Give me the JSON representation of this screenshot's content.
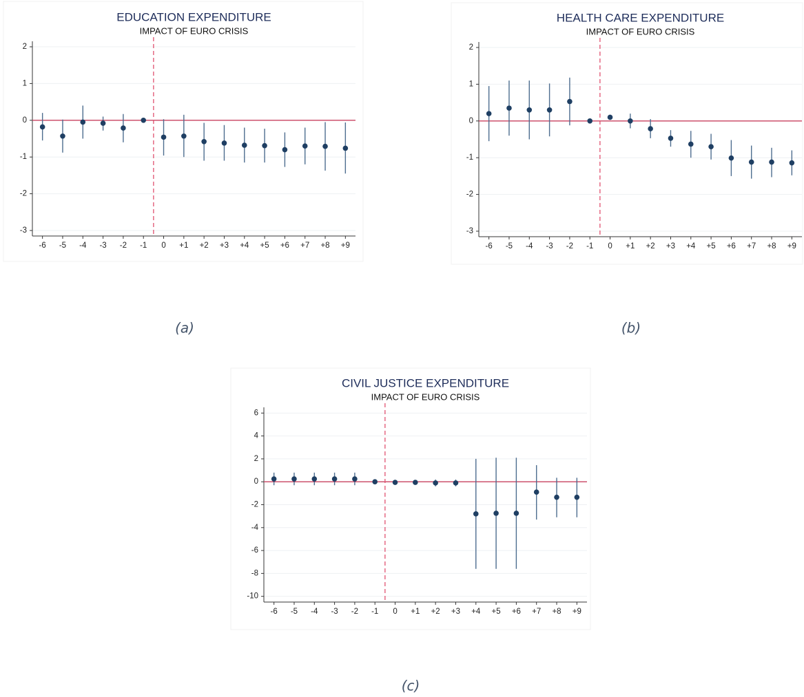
{
  "chart_data": [
    {
      "type": "errorbar",
      "title": "EDUCATION EXPENDITURE",
      "subtitle": "IMPACT OF EURO CRISIS",
      "caption": "(a)",
      "x": [
        -6,
        -5,
        -4,
        -3,
        -2,
        -1,
        0,
        1,
        2,
        3,
        4,
        5,
        6,
        7,
        8,
        9
      ],
      "values": [
        -0.18,
        -0.43,
        -0.05,
        -0.08,
        -0.21,
        0,
        -0.46,
        -0.43,
        -0.58,
        -0.62,
        -0.68,
        -0.69,
        -0.8,
        -0.7,
        -0.71,
        -0.76
      ],
      "lower": [
        -0.55,
        -0.88,
        -0.5,
        -0.28,
        -0.6,
        0,
        -0.96,
        -1.0,
        -1.1,
        -1.1,
        -1.15,
        -1.15,
        -1.27,
        -1.2,
        -1.37,
        -1.45
      ],
      "upper": [
        0.2,
        0.02,
        0.4,
        0.1,
        0.17,
        0,
        0.03,
        0.15,
        -0.07,
        -0.13,
        -0.2,
        -0.23,
        -0.33,
        -0.2,
        -0.05,
        -0.06
      ],
      "xlim": [
        -6.5,
        9.5
      ],
      "xticks": [
        -6,
        -5,
        -4,
        -3,
        -2,
        -1,
        0,
        {
          "value": 1,
          "label": "+1"
        },
        {
          "value": 2,
          "label": "+2"
        },
        {
          "value": 3,
          "label": "+3"
        },
        {
          "value": 4,
          "label": "+4"
        },
        {
          "value": 5,
          "label": "+5"
        },
        {
          "value": 6,
          "label": "+6"
        },
        {
          "value": 7,
          "label": "+7"
        },
        {
          "value": 8,
          "label": "+8"
        },
        {
          "value": 9,
          "label": "+9"
        }
      ],
      "ylim": [
        -3.15,
        2.15
      ],
      "yticks": [
        -3,
        -2,
        -1,
        0,
        1,
        2
      ],
      "hline": 0,
      "vline": -0.5,
      "grid": true,
      "color": "#1f3f63",
      "error_color": "#4d6d8f",
      "hline_color": "#c8405f",
      "vline_color": "#e0506f"
    },
    {
      "type": "errorbar",
      "title": "HEALTH CARE EXPENDITURE",
      "subtitle": "IMPACT OF EURO CRISIS",
      "caption": "(b)",
      "x": [
        -6,
        -5,
        -4,
        -3,
        -2,
        -1,
        0,
        1,
        2,
        3,
        4,
        5,
        6,
        7,
        8,
        9
      ],
      "values": [
        0.2,
        0.35,
        0.3,
        0.3,
        0.53,
        0,
        0.1,
        0,
        -0.21,
        -0.47,
        -0.63,
        -0.7,
        -1.01,
        -1.12,
        -1.12,
        -1.14
      ],
      "lower": [
        -0.55,
        -0.4,
        -0.5,
        -0.42,
        -0.12,
        0,
        0.03,
        -0.2,
        -0.47,
        -0.7,
        -1.0,
        -1.05,
        -1.5,
        -1.57,
        -1.53,
        -1.48
      ],
      "upper": [
        0.95,
        1.1,
        1.1,
        1.02,
        1.18,
        0,
        0.16,
        0.2,
        0.05,
        -0.25,
        -0.27,
        -0.35,
        -0.52,
        -0.67,
        -0.73,
        -0.8
      ],
      "xlim": [
        -6.5,
        9.5
      ],
      "xticks": [
        -6,
        -5,
        -4,
        -3,
        -2,
        -1,
        0,
        {
          "value": 1,
          "label": "+1"
        },
        {
          "value": 2,
          "label": "+2"
        },
        {
          "value": 3,
          "label": "+3"
        },
        {
          "value": 4,
          "label": "+4"
        },
        {
          "value": 5,
          "label": "+5"
        },
        {
          "value": 6,
          "label": "+6"
        },
        {
          "value": 7,
          "label": "+7"
        },
        {
          "value": 8,
          "label": "+8"
        },
        {
          "value": 9,
          "label": "+9"
        }
      ],
      "ylim": [
        -3.15,
        2.15
      ],
      "yticks": [
        -3,
        -2,
        -1,
        0,
        1,
        2
      ],
      "hline": 0,
      "vline": -0.5,
      "grid": true,
      "color": "#1f3f63",
      "error_color": "#4d6d8f",
      "hline_color": "#c8405f",
      "vline_color": "#e0506f"
    },
    {
      "type": "errorbar",
      "title": "CIVIL JUSTICE EXPENDITURE",
      "subtitle": "IMPACT OF EURO CRISIS",
      "caption": "(c)",
      "x": [
        -6,
        -5,
        -4,
        -3,
        -2,
        -1,
        0,
        1,
        2,
        3,
        4,
        5,
        6,
        7,
        8,
        9
      ],
      "values": [
        0.25,
        0.25,
        0.25,
        0.25,
        0.25,
        0,
        -0.05,
        -0.05,
        -0.1,
        -0.1,
        -2.8,
        -2.75,
        -2.75,
        -0.9,
        -1.35,
        -1.35
      ],
      "lower": [
        -0.3,
        -0.3,
        -0.3,
        -0.3,
        -0.3,
        0,
        -0.2,
        -0.2,
        -0.4,
        -0.4,
        -7.6,
        -7.6,
        -7.6,
        -3.3,
        -3.1,
        -3.1
      ],
      "upper": [
        0.8,
        0.8,
        0.8,
        0.8,
        0.8,
        0,
        0.1,
        0.1,
        0.2,
        0.2,
        2.0,
        2.1,
        2.1,
        1.45,
        0.35,
        0.35
      ],
      "xlim": [
        -6.5,
        9.5
      ],
      "xticks": [
        -6,
        -5,
        -4,
        -3,
        -2,
        -1,
        0,
        {
          "value": 1,
          "label": "+1"
        },
        {
          "value": 2,
          "label": "+2"
        },
        {
          "value": 3,
          "label": "+3"
        },
        {
          "value": 4,
          "label": "+4"
        },
        {
          "value": 5,
          "label": "+5"
        },
        {
          "value": 6,
          "label": "+6"
        },
        {
          "value": 7,
          "label": "+7"
        },
        {
          "value": 8,
          "label": "+8"
        },
        {
          "value": 9,
          "label": "+9"
        }
      ],
      "ylim": [
        -10.5,
        6.5
      ],
      "yticks": [
        -10,
        -8,
        -6,
        -4,
        -2,
        0,
        2,
        4,
        6
      ],
      "hline": 0,
      "vline": -0.5,
      "grid": true,
      "color": "#1f3f63",
      "error_color": "#4d6d8f",
      "hline_color": "#c8405f",
      "vline_color": "#e0506f"
    }
  ]
}
